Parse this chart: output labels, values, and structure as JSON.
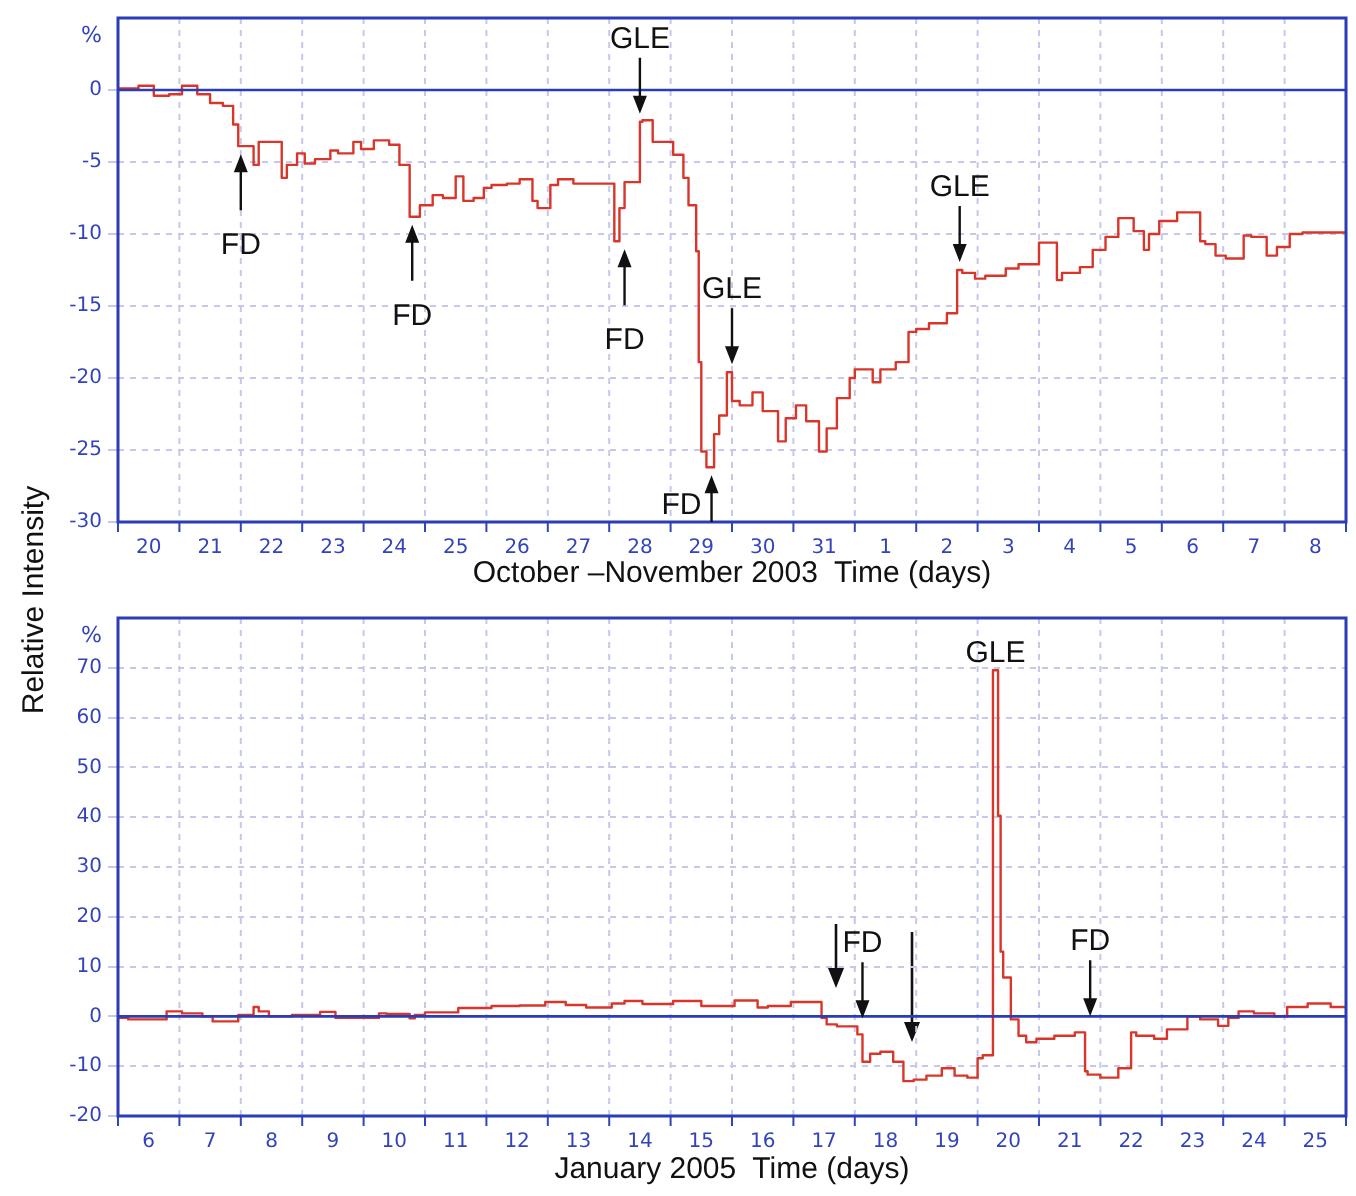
{
  "chart_data": [
    {
      "type": "step",
      "xlabel": "October –November 2003  Time (days)",
      "ylabel": "%",
      "grid": true,
      "legend": false,
      "marker": "none",
      "line_style": "solid",
      "annotations": [
        "Relative Intensity",
        {
          "text": "FD",
          "x": "2003-10-22T00:00",
          "y": -3.9
        },
        {
          "text": "FD",
          "x": "2003-10-24T19:00",
          "y": -8.8
        },
        {
          "text": "FD",
          "x": "2003-10-28T06:00",
          "y": -10.5
        },
        {
          "text": "GLE",
          "x": "2003-10-28T12:00",
          "y": -2.2
        },
        {
          "text": "FD",
          "x": "2003-10-29T16:00",
          "y": -26.2
        },
        {
          "text": "GLE",
          "x": "2003-10-30T00:00",
          "y": -19.6
        },
        {
          "text": "GLE",
          "x": "2003-11-02T17:00",
          "y": -12.5
        }
      ],
      "xlim": [
        "2003-10-20",
        "2003-11-09"
      ],
      "ylim": [
        -30,
        5
      ],
      "xticks": [
        {
          "value": "2003-10-20",
          "label": null
        },
        {
          "value": "2003-10-20T12:00",
          "label": "20"
        },
        {
          "value": "2003-10-21",
          "label": null
        },
        {
          "value": "2003-10-21T12:00",
          "label": "21"
        },
        {
          "value": "2003-10-22",
          "label": null
        },
        {
          "value": "2003-10-22T12:00",
          "label": "22"
        },
        {
          "value": "2003-10-23",
          "label": null
        },
        {
          "value": "2003-10-23T12:00",
          "label": "23"
        },
        {
          "value": "2003-10-24",
          "label": null
        },
        {
          "value": "2003-10-24T12:00",
          "label": "24"
        },
        {
          "value": "2003-10-25",
          "label": null
        },
        {
          "value": "2003-10-25T12:00",
          "label": "25"
        },
        {
          "value": "2003-10-26",
          "label": null
        },
        {
          "value": "2003-10-26T12:00",
          "label": "26"
        },
        {
          "value": "2003-10-27",
          "label": null
        },
        {
          "value": "2003-10-27T12:00",
          "label": "27"
        },
        {
          "value": "2003-10-28",
          "label": null
        },
        {
          "value": "2003-10-28T12:00",
          "label": "28"
        },
        {
          "value": "2003-10-29",
          "label": null
        },
        {
          "value": "2003-10-29T12:00",
          "label": "29"
        },
        {
          "value": "2003-10-30",
          "label": null
        },
        {
          "value": "2003-10-30T12:00",
          "label": "30"
        },
        {
          "value": "2003-10-31",
          "label": null
        },
        {
          "value": "2003-10-31T12:00",
          "label": "31"
        },
        {
          "value": "2003-11-01",
          "label": null
        },
        {
          "value": "2003-11-01T12:00",
          "label": "1"
        },
        {
          "value": "2003-11-02",
          "label": null
        },
        {
          "value": "2003-11-02T12:00",
          "label": "2"
        },
        {
          "value": "2003-11-03",
          "label": null
        },
        {
          "value": "2003-11-03T12:00",
          "label": "3"
        },
        {
          "value": "2003-11-04",
          "label": null
        },
        {
          "value": "2003-11-04T12:00",
          "label": "4"
        },
        {
          "value": "2003-11-05",
          "label": null
        },
        {
          "value": "2003-11-05T12:00",
          "label": "5"
        },
        {
          "value": "2003-11-06",
          "label": null
        },
        {
          "value": "2003-11-06T12:00",
          "label": "6"
        },
        {
          "value": "2003-11-07",
          "label": null
        },
        {
          "value": "2003-11-07T12:00",
          "label": "7"
        },
        {
          "value": "2003-11-08",
          "label": null
        },
        {
          "value": "2003-11-08T12:00",
          "label": "8"
        },
        {
          "value": "2003-11-09",
          "label": null
        }
      ],
      "yticks": [
        -30,
        -25,
        -20,
        -15,
        -10,
        -5,
        0
      ],
      "ref_lines": [
        {
          "axis": "y",
          "value": 0,
          "color": "#2a3db5"
        }
      ],
      "x": [
        "2003-10-20T00:00",
        "2003-10-20T08:00",
        "2003-10-20T14:00",
        "2003-10-20T20:00",
        "2003-10-21T01:00",
        "2003-10-21T07:00",
        "2003-10-21T12:00",
        "2003-10-21T17:00",
        "2003-10-21T21:00",
        "2003-10-21T23:00",
        "2003-10-22T00:00",
        "2003-10-22T05:00",
        "2003-10-22T07:00",
        "2003-10-22T10:00",
        "2003-10-22T16:00",
        "2003-10-22T18:00",
        "2003-10-22T22:00",
        "2003-10-23T01:00",
        "2003-10-23T05:00",
        "2003-10-23T11:00",
        "2003-10-23T14:00",
        "2003-10-23T20:00",
        "2003-10-23T23:00",
        "2003-10-24T04:00",
        "2003-10-24T10:00",
        "2003-10-24T14:00",
        "2003-10-24T18:00",
        "2003-10-24T22:00",
        "2003-10-25T03:00",
        "2003-10-25T07:00",
        "2003-10-25T12:00",
        "2003-10-25T15:00",
        "2003-10-25T19:00",
        "2003-10-25T23:00",
        "2003-10-26T02:00",
        "2003-10-26T08:00",
        "2003-10-26T13:00",
        "2003-10-26T18:00",
        "2003-10-26T20:00",
        "2003-10-27T01:00",
        "2003-10-27T04:00",
        "2003-10-27T10:00",
        "2003-10-27T18:00",
        "2003-10-28T02:00",
        "2003-10-28T04:00",
        "2003-10-28T06:00",
        "2003-10-28T09:00",
        "2003-10-28T12:00",
        "2003-10-28T13:00",
        "2003-10-28T17:00",
        "2003-10-28T21:00",
        "2003-10-29T01:00",
        "2003-10-29T05:00",
        "2003-10-29T07:00",
        "2003-10-29T10:00",
        "2003-10-29T11:00",
        "2003-10-29T12:00",
        "2003-10-29T14:00",
        "2003-10-29T17:00",
        "2003-10-29T19:00",
        "2003-10-29T22:00",
        "2003-10-30T00:00",
        "2003-10-30T03:00",
        "2003-10-30T08:00",
        "2003-10-30T12:00",
        "2003-10-30T18:00",
        "2003-10-30T21:00",
        "2003-10-31T01:00",
        "2003-10-31T05:00",
        "2003-10-31T10:00",
        "2003-10-31T13:00",
        "2003-10-31T17:00",
        "2003-10-31T22:00",
        "2003-11-01T00:00",
        "2003-11-01T07:00",
        "2003-11-01T10:00",
        "2003-11-01T16:00",
        "2003-11-01T21:00",
        "2003-11-02T00:00",
        "2003-11-02T05:00",
        "2003-11-02T12:00",
        "2003-11-02T16:00",
        "2003-11-02T18:00",
        "2003-11-02T23:00",
        "2003-11-03T03:00",
        "2003-11-03T11:00",
        "2003-11-03T16:00",
        "2003-11-04T00:00",
        "2003-11-04T07:00",
        "2003-11-04T09:00",
        "2003-11-04T16:00",
        "2003-11-04T21:00",
        "2003-11-05T02:00",
        "2003-11-05T07:00",
        "2003-11-05T13:00",
        "2003-11-05T17:00",
        "2003-11-05T19:00",
        "2003-11-05T23:00",
        "2003-11-06T06:00",
        "2003-11-06T12:00",
        "2003-11-06T15:00",
        "2003-11-06T17:00",
        "2003-11-06T21:00",
        "2003-11-07T01:00",
        "2003-11-07T08:00",
        "2003-11-07T11:00",
        "2003-11-07T17:00",
        "2003-11-07T21:00",
        "2003-11-08T02:00",
        "2003-11-08T07:00",
        "2003-11-08T14:00",
        "2003-11-09T00:00"
      ],
      "series": [
        {
          "color": "#d9362b",
          "values": [
            -0.1,
            0.1,
            0.3,
            -0.4,
            -0.3,
            0.3,
            -0.3,
            -0.9,
            -1.1,
            -2.4,
            -3.9,
            -3.9,
            -5.2,
            -3.6,
            -3.6,
            -6.1,
            -5.2,
            -4.4,
            -5.1,
            -4.8,
            -4.2,
            -4.4,
            -3.6,
            -4.1,
            -3.5,
            -3.8,
            -5.2,
            -8.8,
            -8.0,
            -7.3,
            -7.5,
            -6.0,
            -7.7,
            -7.5,
            -6.8,
            -6.6,
            -6.5,
            -6.2,
            -7.7,
            -8.2,
            -6.6,
            -6.2,
            -6.5,
            -6.5,
            -10.5,
            -8.2,
            -6.4,
            -6.4,
            -2.2,
            -2.1,
            -3.6,
            -3.6,
            -4.5,
            -6.1,
            -8.0,
            -11.2,
            -18.9,
            -25.1,
            -26.2,
            -23.9,
            -22.6,
            -19.6,
            -21.6,
            -21.9,
            -21.0,
            -22.3,
            -24.4,
            -22.8,
            -21.9,
            -23.0,
            -25.1,
            -23.5,
            -21.4,
            -20.0,
            -19.4,
            -20.3,
            -19.4,
            -18.9,
            -16.8,
            -16.6,
            -16.2,
            -15.5,
            -12.5,
            -12.7,
            -13.1,
            -12.9,
            -12.4,
            -12.1,
            -10.6,
            -13.2,
            -12.7,
            -12.3,
            -11.1,
            -10.2,
            -8.9,
            -9.8,
            -11.1,
            -10.0,
            -9.1,
            -8.5,
            -8.5,
            -10.5,
            -10.7,
            -11.5,
            -11.7,
            -10.1,
            -10.2,
            -11.5,
            -10.9,
            -10.0,
            -9.9,
            -9.9
          ]
        }
      ]
    },
    {
      "type": "step",
      "xlabel": "January 2005  Time (days)",
      "ylabel": "%",
      "grid": true,
      "legend": false,
      "marker": "none",
      "line_style": "solid",
      "annotations": [
        {
          "text": "FD",
          "x": "2005-01-18T03:00",
          "y": -2.0
        },
        {
          "text": "GLE",
          "x": "2005-01-20T07:00",
          "y": 69.5
        },
        {
          "text": "FD",
          "x": "2005-01-21T20:00",
          "y": -1.6
        }
      ],
      "xlim": [
        "2005-01-06",
        "2005-01-26"
      ],
      "ylim": [
        -20,
        80
      ],
      "xticks": [
        {
          "value": "2005-01-06",
          "label": null
        },
        {
          "value": "2005-01-06T12:00",
          "label": "6"
        },
        {
          "value": "2005-01-07",
          "label": null
        },
        {
          "value": "2005-01-07T12:00",
          "label": "7"
        },
        {
          "value": "2005-01-08",
          "label": null
        },
        {
          "value": "2005-01-08T12:00",
          "label": "8"
        },
        {
          "value": "2005-01-09",
          "label": null
        },
        {
          "value": "2005-01-09T12:00",
          "label": "9"
        },
        {
          "value": "2005-01-10",
          "label": null
        },
        {
          "value": "2005-01-10T12:00",
          "label": "10"
        },
        {
          "value": "2005-01-11",
          "label": null
        },
        {
          "value": "2005-01-11T12:00",
          "label": "11"
        },
        {
          "value": "2005-01-12",
          "label": null
        },
        {
          "value": "2005-01-12T12:00",
          "label": "12"
        },
        {
          "value": "2005-01-13",
          "label": null
        },
        {
          "value": "2005-01-13T12:00",
          "label": "13"
        },
        {
          "value": "2005-01-14",
          "label": null
        },
        {
          "value": "2005-01-14T12:00",
          "label": "14"
        },
        {
          "value": "2005-01-15",
          "label": null
        },
        {
          "value": "2005-01-15T12:00",
          "label": "15"
        },
        {
          "value": "2005-01-16",
          "label": null
        },
        {
          "value": "2005-01-16T12:00",
          "label": "16"
        },
        {
          "value": "2005-01-17",
          "label": null
        },
        {
          "value": "2005-01-17T12:00",
          "label": "17"
        },
        {
          "value": "2005-01-18",
          "label": null
        },
        {
          "value": "2005-01-18T12:00",
          "label": "18"
        },
        {
          "value": "2005-01-19",
          "label": null
        },
        {
          "value": "2005-01-19T12:00",
          "label": "19"
        },
        {
          "value": "2005-01-20",
          "label": null
        },
        {
          "value": "2005-01-20T12:00",
          "label": "20"
        },
        {
          "value": "2005-01-21",
          "label": null
        },
        {
          "value": "2005-01-21T12:00",
          "label": "21"
        },
        {
          "value": "2005-01-22",
          "label": null
        },
        {
          "value": "2005-01-22T12:00",
          "label": "22"
        },
        {
          "value": "2005-01-23",
          "label": null
        },
        {
          "value": "2005-01-23T12:00",
          "label": "23"
        },
        {
          "value": "2005-01-24",
          "label": null
        },
        {
          "value": "2005-01-24T12:00",
          "label": "24"
        },
        {
          "value": "2005-01-25",
          "label": null
        },
        {
          "value": "2005-01-25T12:00",
          "label": "25"
        },
        {
          "value": "2005-01-26",
          "label": null
        }
      ],
      "yticks": [
        -20,
        -10,
        0,
        10,
        20,
        30,
        40,
        50,
        60,
        70
      ],
      "ref_lines": [
        {
          "axis": "y",
          "value": 0,
          "color": "#2a3db5"
        }
      ],
      "x": [
        "2005-01-06T00:00",
        "2005-01-06T04:00",
        "2005-01-06T19:00",
        "2005-01-07T01:00",
        "2005-01-07T09:00",
        "2005-01-07T13:00",
        "2005-01-07T23:00",
        "2005-01-08T05:00",
        "2005-01-08T07:00",
        "2005-01-08T11:00",
        "2005-01-08T20:00",
        "2005-01-09T07:00",
        "2005-01-09T13:00",
        "2005-01-09T18:00",
        "2005-01-10T06:00",
        "2005-01-10T09:00",
        "2005-01-10T18:00",
        "2005-01-10T20:00",
        "2005-01-11T00:00",
        "2005-01-11T13:00",
        "2005-01-12T02:00",
        "2005-01-12T13:00",
        "2005-01-12T23:00",
        "2005-01-13T07:00",
        "2005-01-13T15:00",
        "2005-01-14T01:00",
        "2005-01-14T06:00",
        "2005-01-14T13:00",
        "2005-01-14T17:00",
        "2005-01-15T01:00",
        "2005-01-15T12:00",
        "2005-01-16T01:00",
        "2005-01-16T10:00",
        "2005-01-16T14:00",
        "2005-01-16T23:00",
        "2005-01-17T11:00",
        "2005-01-17T13:00",
        "2005-01-17T17:00",
        "2005-01-18T01:00",
        "2005-01-18T03:00",
        "2005-01-18T06:00",
        "2005-01-18T10:00",
        "2005-01-18T15:00",
        "2005-01-18T19:00",
        "2005-01-18T23:00",
        "2005-01-19T04:00",
        "2005-01-19T10:00",
        "2005-01-19T15:00",
        "2005-01-19T20:00",
        "2005-01-20T00:00",
        "2005-01-20T02:00",
        "2005-01-20T06:00",
        "2005-01-20T06:30",
        "2005-01-20T08:00",
        "2005-01-20T09:00",
        "2005-01-20T10:00",
        "2005-01-20T13:00",
        "2005-01-20T16:00",
        "2005-01-20T19:00",
        "2005-01-20T23:00",
        "2005-01-21T06:00",
        "2005-01-21T14:00",
        "2005-01-21T18:00",
        "2005-01-21T19:00",
        "2005-01-22T00:00",
        "2005-01-22T07:00",
        "2005-01-22T12:00",
        "2005-01-22T14:00",
        "2005-01-22T21:00",
        "2005-01-23T02:00",
        "2005-01-23T10:00",
        "2005-01-23T15:00",
        "2005-01-23T22:00",
        "2005-01-24T02:00",
        "2005-01-24T06:00",
        "2005-01-24T12:00",
        "2005-01-24T20:00",
        "2005-01-25T01:00",
        "2005-01-25T09:00",
        "2005-01-25T18:00",
        "2005-01-26T00:00"
      ],
      "series": [
        {
          "color": "#d9362b",
          "values": [
            -1.0,
            -0.3,
            -0.6,
            1.0,
            0.6,
            0,
            -1.0,
            0.3,
            1.9,
            1.0,
            0,
            0.3,
            0.9,
            -0.3,
            -0.3,
            0.6,
            0.5,
            -0.4,
            0.3,
            0.8,
            1.7,
            2.1,
            2.2,
            2.9,
            2.3,
            1.8,
            2.6,
            3.1,
            2.5,
            2.5,
            3.1,
            2.1,
            3.2,
            1.8,
            2.1,
            2.9,
            -0.3,
            -1.6,
            -2.0,
            -3.6,
            -9.1,
            -7.5,
            -7.1,
            -9.1,
            -13.0,
            -12.7,
            -11.9,
            -10.4,
            -11.9,
            -12.3,
            -8.4,
            -7.8,
            69.5,
            69.5,
            40.3,
            13.0,
            7.8,
            -0.6,
            -3.9,
            -5.2,
            -4.5,
            -3.9,
            -3.2,
            -11.0,
            -11.7,
            -12.3,
            -10.4,
            -3.2,
            -3.9,
            -4.5,
            -2.6,
            0,
            -0.6,
            -1.9,
            -0.3,
            1.0,
            0.6,
            0,
            1.9,
            2.6,
            1.9
          ]
        }
      ]
    }
  ]
}
